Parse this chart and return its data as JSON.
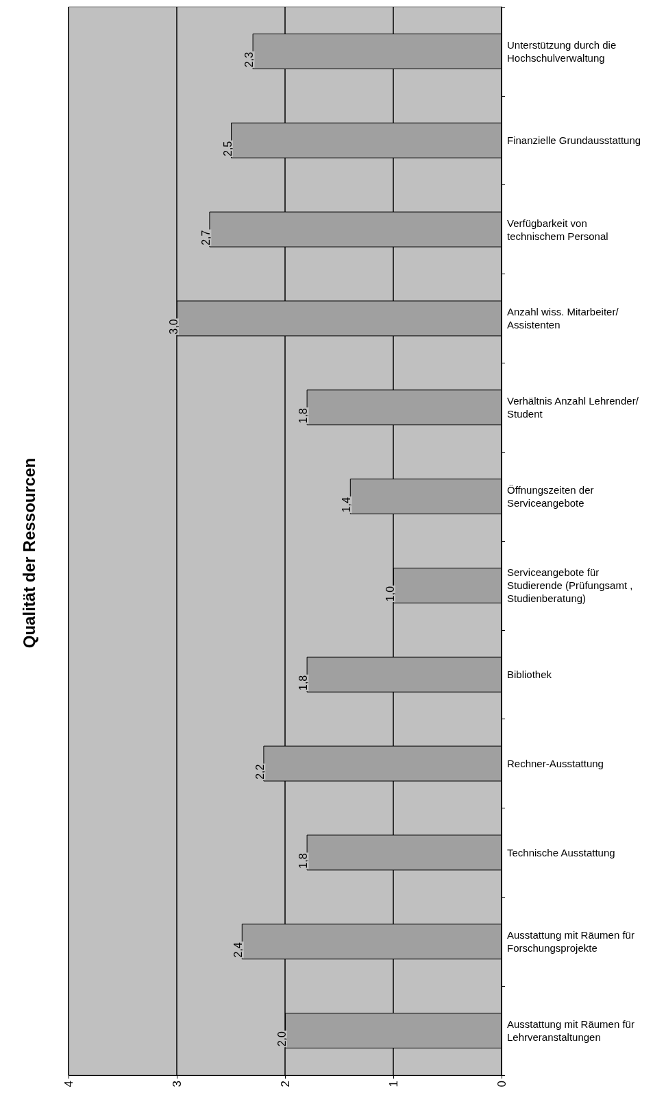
{
  "chart_data": {
    "type": "bar",
    "title": "Qualität der Ressourcen",
    "orientation": "horizontal",
    "categories": [
      "Unterstützung durch die Hochschulverwaltung",
      "Finanzielle Grundausstattung",
      "Verfügbarkeit von technischem Personal",
      "Anzahl wiss. Mitarbeiter/Assistenten",
      "Verhältnis Anzahl Lehrender/Student",
      "Öffnungszeiten der Serviceangebote",
      "Serviceangebote für Studierende (Prüfungsamt , Studienberatung)",
      "Bibliothek",
      "Rechner-Ausstattung",
      "Technische Ausstattung",
      "Ausstattung mit Räumen für Forschungsprojekte",
      "Ausstattung mit Räumen für Lehrveranstaltungen"
    ],
    "values": [
      2.3,
      2.5,
      2.7,
      3.0,
      1.8,
      1.4,
      1.0,
      1.8,
      2.2,
      1.8,
      2.4,
      2.0
    ],
    "value_labels": [
      "2,3",
      "2,5",
      "2,7",
      "3,0",
      "1,8",
      "1,4",
      "1,0",
      "1,8",
      "2,2",
      "1,8",
      "2,4",
      "2,0"
    ],
    "color": "#a0a0a0",
    "xlim": [
      4,
      0
    ],
    "xticks": [
      0,
      1,
      2,
      3,
      4
    ],
    "grid": "x"
  }
}
